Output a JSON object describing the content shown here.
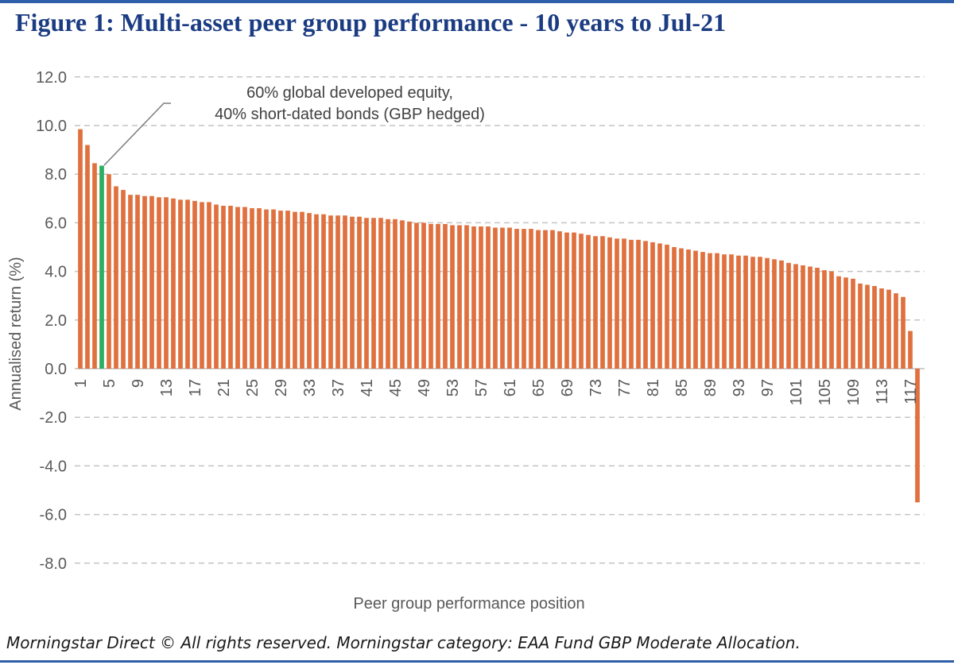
{
  "page": {
    "title": "Figure 1: Multi-asset peer group performance - 10 years to Jul-21",
    "footer": "Morningstar Direct © All rights reserved. Morningstar category: EAA Fund GBP Moderate Allocation.",
    "title_color": "#1b3c82",
    "accent_rule_color": "#2e5fa8"
  },
  "chart_data": {
    "type": "bar",
    "title": "",
    "xlabel": "Peer group performance position",
    "ylabel": "Annualised return (%)",
    "ylim": [
      -8.0,
      12.0
    ],
    "ytick_step": 2.0,
    "ytick_format_decimals": 1,
    "xticks": [
      1,
      5,
      9,
      13,
      17,
      21,
      25,
      29,
      33,
      37,
      41,
      45,
      49,
      53,
      57,
      61,
      65,
      69,
      73,
      77,
      81,
      85,
      89,
      93,
      97,
      101,
      105,
      109,
      113,
      117
    ],
    "n_bars": 118,
    "values": [
      9.85,
      9.2,
      8.45,
      8.35,
      8.0,
      7.5,
      7.35,
      7.15,
      7.15,
      7.1,
      7.1,
      7.05,
      7.05,
      7.0,
      6.95,
      6.95,
      6.9,
      6.85,
      6.85,
      6.75,
      6.7,
      6.7,
      6.65,
      6.65,
      6.6,
      6.6,
      6.55,
      6.55,
      6.5,
      6.5,
      6.45,
      6.45,
      6.4,
      6.35,
      6.35,
      6.3,
      6.3,
      6.3,
      6.25,
      6.25,
      6.2,
      6.2,
      6.2,
      6.15,
      6.15,
      6.1,
      6.05,
      6.0,
      6.0,
      5.95,
      5.95,
      5.95,
      5.9,
      5.9,
      5.9,
      5.85,
      5.85,
      5.85,
      5.8,
      5.8,
      5.8,
      5.75,
      5.75,
      5.75,
      5.7,
      5.7,
      5.7,
      5.65,
      5.6,
      5.6,
      5.55,
      5.5,
      5.45,
      5.45,
      5.4,
      5.35,
      5.35,
      5.3,
      5.3,
      5.25,
      5.2,
      5.15,
      5.1,
      5.0,
      4.95,
      4.9,
      4.85,
      4.8,
      4.75,
      4.75,
      4.7,
      4.7,
      4.65,
      4.65,
      4.6,
      4.6,
      4.55,
      4.5,
      4.45,
      4.35,
      4.3,
      4.25,
      4.2,
      4.15,
      4.05,
      4.0,
      3.8,
      3.75,
      3.7,
      3.5,
      3.45,
      3.4,
      3.3,
      3.25,
      3.1,
      2.95,
      1.55,
      -5.5
    ],
    "highlight_position": 4,
    "bar_color": "#e0713f",
    "highlight_color": "#2eae60",
    "grid": "horizontal-dashed",
    "grid_color": "#c4c4c4",
    "zero_axis_color": "#bfbfbf",
    "legend": "none",
    "annotation": {
      "line1": "60% global developed equity,",
      "line2": "40% short-dated bonds (GBP hedged)",
      "leader_line_color": "#7f7f7f"
    }
  }
}
